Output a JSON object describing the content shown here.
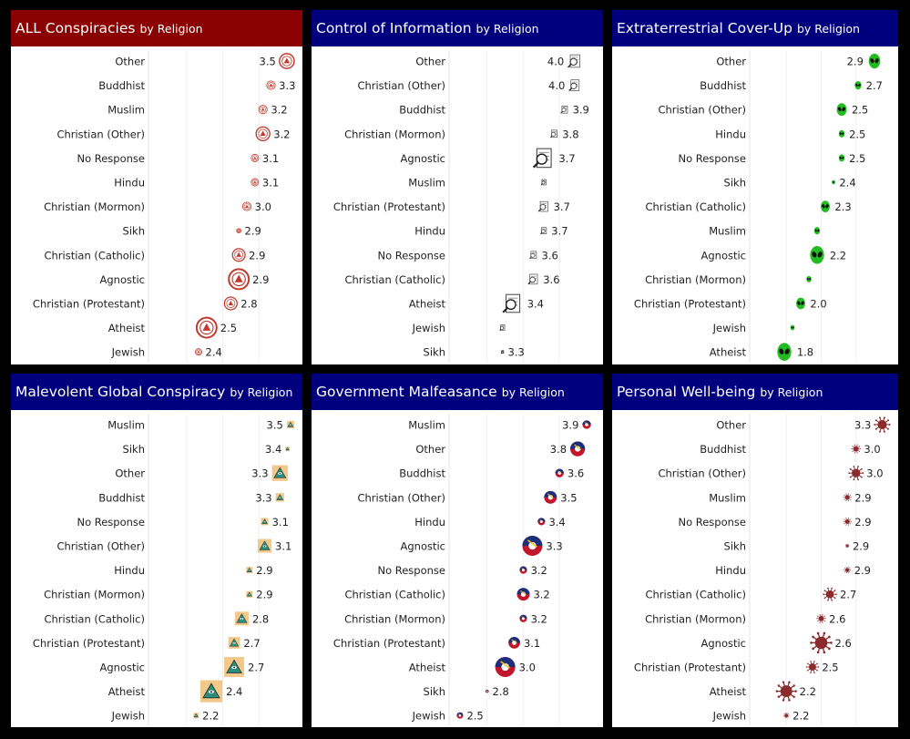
{
  "colors": {
    "background": "#000000",
    "header_red": "#8b0000",
    "header_blue": "#00007f"
  },
  "chart_data": [
    {
      "type": "scatter",
      "title": "ALL Conspiracies",
      "subtitle": "by Religion",
      "header_color": "#8b0000",
      "icon": "seal-icon",
      "icon_color": "#c0392b",
      "xlim": [
        1.8,
        3.6
      ],
      "categories": [
        "Other",
        "Buddhist",
        "Muslim",
        "Christian (Other)",
        "No Response",
        "Hindu",
        "Christian (Mormon)",
        "Sikh",
        "Christian (Catholic)",
        "Agnostic",
        "Christian (Protestant)",
        "Atheist",
        "Jewish"
      ],
      "values": [
        3.5,
        3.3,
        3.2,
        3.2,
        3.1,
        3.1,
        3.0,
        2.9,
        2.9,
        2.9,
        2.8,
        2.5,
        2.4
      ],
      "labels": [
        "3.5",
        "3.3",
        "3.2",
        "3.2",
        "3.1",
        "3.1",
        "3.0",
        "2.9",
        "2.9",
        "2.9",
        "2.8",
        "2.5",
        "2.4"
      ],
      "sizes": [
        0.6,
        0.3,
        0.3,
        0.55,
        0.25,
        0.25,
        0.3,
        0.1,
        0.5,
        0.85,
        0.5,
        0.85,
        0.2
      ]
    },
    {
      "type": "scatter",
      "title": "Control of Information",
      "subtitle": "by Religion",
      "header_color": "#00007f",
      "icon": "document-magnifier-icon",
      "icon_color": "#777777",
      "xlim": [
        2.8,
        4.2
      ],
      "categories": [
        "Other",
        "Christian (Other)",
        "Buddhist",
        "Christian (Mormon)",
        "Agnostic",
        "Muslim",
        "Christian (Protestant)",
        "Hindu",
        "No Response",
        "Christian (Catholic)",
        "Atheist",
        "Jewish",
        "Sikh"
      ],
      "values": [
        4.0,
        4.0,
        3.9,
        3.8,
        3.7,
        3.7,
        3.7,
        3.7,
        3.6,
        3.6,
        3.4,
        3.3,
        3.3
      ],
      "labels": [
        "4.0",
        "4.0",
        "3.9",
        "3.8",
        "3.7",
        "",
        "3.7",
        "3.7",
        "3.6",
        "3.6",
        "3.4",
        "",
        "3.3"
      ],
      "sizes": [
        0.6,
        0.5,
        0.3,
        0.3,
        0.95,
        0.2,
        0.45,
        0.25,
        0.3,
        0.45,
        0.9,
        0.2,
        0.05
      ]
    },
    {
      "type": "scatter",
      "title": "Extraterrestrial Cover-Up",
      "subtitle": "by Religion",
      "header_color": "#00007f",
      "icon": "alien-icon",
      "icon_color": "#22bb22",
      "xlim": [
        1.4,
        3.1
      ],
      "categories": [
        "Other",
        "Buddhist",
        "Christian (Other)",
        "Hindu",
        "No Response",
        "Sikh",
        "Christian (Catholic)",
        "Muslim",
        "Agnostic",
        "Christian (Mormon)",
        "Christian (Protestant)",
        "Jewish",
        "Atheist"
      ],
      "values": [
        2.9,
        2.7,
        2.5,
        2.5,
        2.5,
        2.4,
        2.3,
        2.2,
        2.2,
        2.1,
        2.0,
        1.9,
        1.8
      ],
      "labels": [
        "2.9",
        "2.7",
        "2.5",
        "2.5",
        "2.5",
        "2.4",
        "2.3",
        "",
        "2.2",
        "",
        "2.0",
        "",
        "1.8"
      ],
      "sizes": [
        0.6,
        0.3,
        0.5,
        0.25,
        0.25,
        0.1,
        0.45,
        0.25,
        0.75,
        0.2,
        0.45,
        0.15,
        0.75
      ]
    },
    {
      "type": "scatter",
      "title": "Malevolent Global Conspiracy",
      "subtitle": "by Religion",
      "header_color": "#00007f",
      "icon": "pyramid-eye-icon",
      "icon_color": "#d4a020",
      "xlim": [
        1.6,
        3.5
      ],
      "categories": [
        "Muslim",
        "Sikh",
        "Other",
        "Buddhist",
        "No Response",
        "Christian (Other)",
        "Hindu",
        "Christian (Mormon)",
        "Christian (Catholic)",
        "Christian (Protestant)",
        "Agnostic",
        "Atheist",
        "Jewish"
      ],
      "values": [
        3.5,
        3.4,
        3.3,
        3.3,
        3.1,
        3.1,
        2.9,
        2.9,
        2.8,
        2.7,
        2.7,
        2.4,
        2.2
      ],
      "labels": [
        "3.5",
        "3.4",
        "3.3",
        "3.3",
        "3.1",
        "3.1",
        "2.9",
        "2.9",
        "2.8",
        "2.7",
        "2.7",
        "2.4",
        "2.2"
      ],
      "sizes": [
        0.25,
        0.1,
        0.65,
        0.3,
        0.25,
        0.55,
        0.2,
        0.2,
        0.55,
        0.45,
        0.85,
        0.95,
        0.15
      ]
    },
    {
      "type": "scatter",
      "title": "Government Malfeasance",
      "subtitle": "by Religion",
      "header_color": "#00007f",
      "icon": "government-seal-icon",
      "icon_color": "#b22222",
      "xlim": [
        2.4,
        4.0
      ],
      "categories": [
        "Muslim",
        "Other",
        "Buddhist",
        "Christian (Other)",
        "Hindu",
        "Agnostic",
        "No Response",
        "Christian (Catholic)",
        "Christian (Mormon)",
        "Christian (Protestant)",
        "Atheist",
        "Sikh",
        "Jewish"
      ],
      "values": [
        3.9,
        3.8,
        3.6,
        3.5,
        3.4,
        3.3,
        3.2,
        3.2,
        3.2,
        3.1,
        3.0,
        2.8,
        2.5
      ],
      "labels": [
        "3.9",
        "3.8",
        "3.6",
        "3.5",
        "3.4",
        "3.3",
        "3.2",
        "3.2",
        "3.2",
        "3.1",
        "3.0",
        "2.8",
        "2.5"
      ],
      "sizes": [
        0.3,
        0.6,
        0.3,
        0.5,
        0.25,
        0.85,
        0.25,
        0.5,
        0.25,
        0.45,
        0.85,
        0.05,
        0.2
      ]
    },
    {
      "type": "scatter",
      "title": "Personal Well-being",
      "subtitle": "by Religion",
      "header_color": "#00007f",
      "icon": "virus-icon",
      "icon_color": "#8b2b2b",
      "xlim": [
        1.8,
        3.4
      ],
      "categories": [
        "Other",
        "Buddhist",
        "Christian (Other)",
        "Muslim",
        "No Response",
        "Sikh",
        "Hindu",
        "Christian (Catholic)",
        "Christian (Mormon)",
        "Agnostic",
        "Christian (Protestant)",
        "Atheist",
        "Jewish"
      ],
      "values": [
        3.3,
        3.0,
        3.0,
        2.9,
        2.9,
        2.9,
        2.9,
        2.7,
        2.6,
        2.6,
        2.5,
        2.2,
        2.2
      ],
      "labels": [
        "3.3",
        "3.0",
        "3.0",
        "2.9",
        "2.9",
        "2.9",
        "2.9",
        "2.7",
        "2.6",
        "2.6",
        "2.5",
        "2.2",
        "2.2"
      ],
      "sizes": [
        0.6,
        0.3,
        0.55,
        0.25,
        0.25,
        0.05,
        0.2,
        0.5,
        0.3,
        0.85,
        0.45,
        0.8,
        0.15
      ]
    }
  ]
}
